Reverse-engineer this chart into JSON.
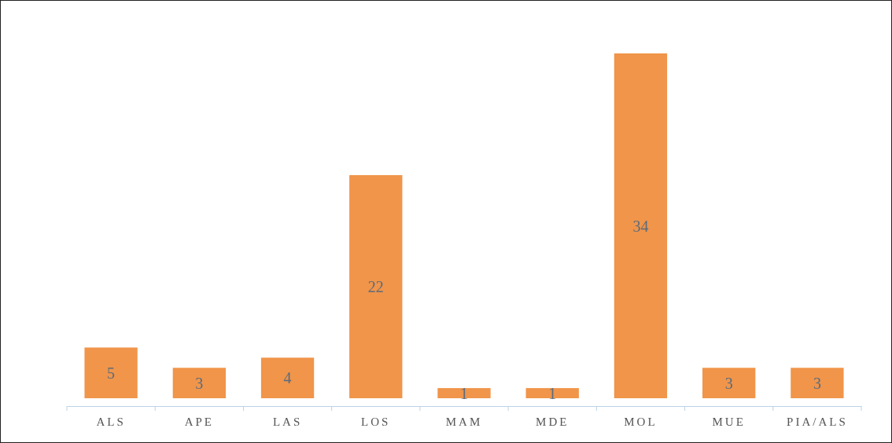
{
  "chart_data": {
    "type": "bar",
    "categories": [
      "ALS",
      "APE",
      "LAS",
      "LOS",
      "MAM",
      "MDE",
      "MOL",
      "MUE",
      "PIA/ALS"
    ],
    "values": [
      5,
      3,
      4,
      22,
      1,
      1,
      34,
      3,
      3
    ],
    "color": "#f0954a",
    "data_labels": true
  }
}
